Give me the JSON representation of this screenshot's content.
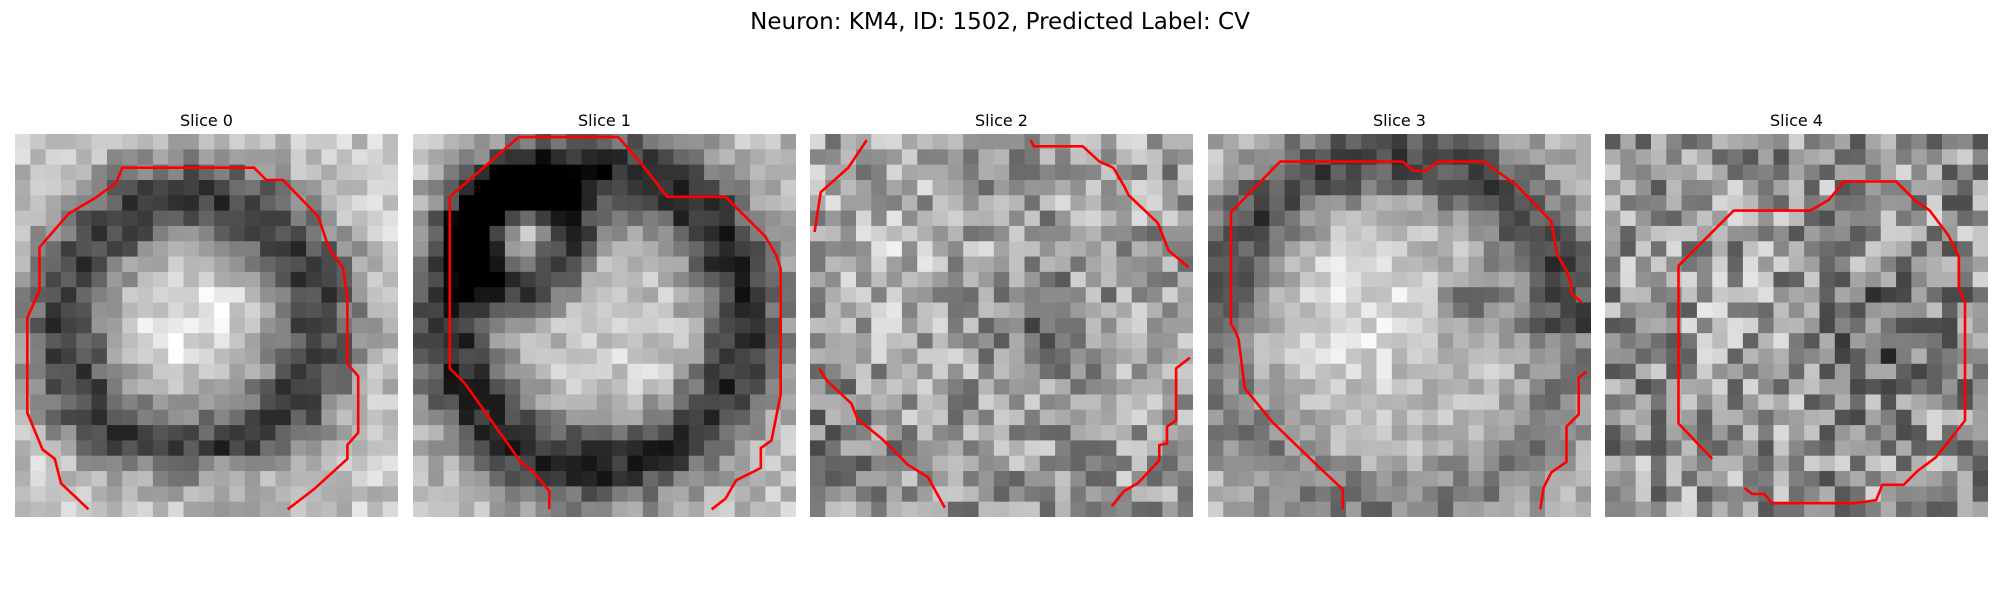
{
  "figure": {
    "title": "Neuron: KM4, ID: 1502, Predicted Label: CV",
    "contour_color": "#ff0000",
    "colormap": "gray"
  },
  "panels": [
    {
      "title": "Slice 0",
      "dark_features": "dark ring around bright center, open at bottom"
    },
    {
      "title": "Slice 1",
      "dark_features": "dark ring with small bright blob at upper-left"
    },
    {
      "title": "Slice 2",
      "dark_features": "diffuse mottled texture, contour segments at edges"
    },
    {
      "title": "Slice 3",
      "dark_features": "bright center, dark rim at top and left"
    },
    {
      "title": "Slice 4",
      "dark_features": "noisy texture, closed octagonal contour"
    }
  ]
}
